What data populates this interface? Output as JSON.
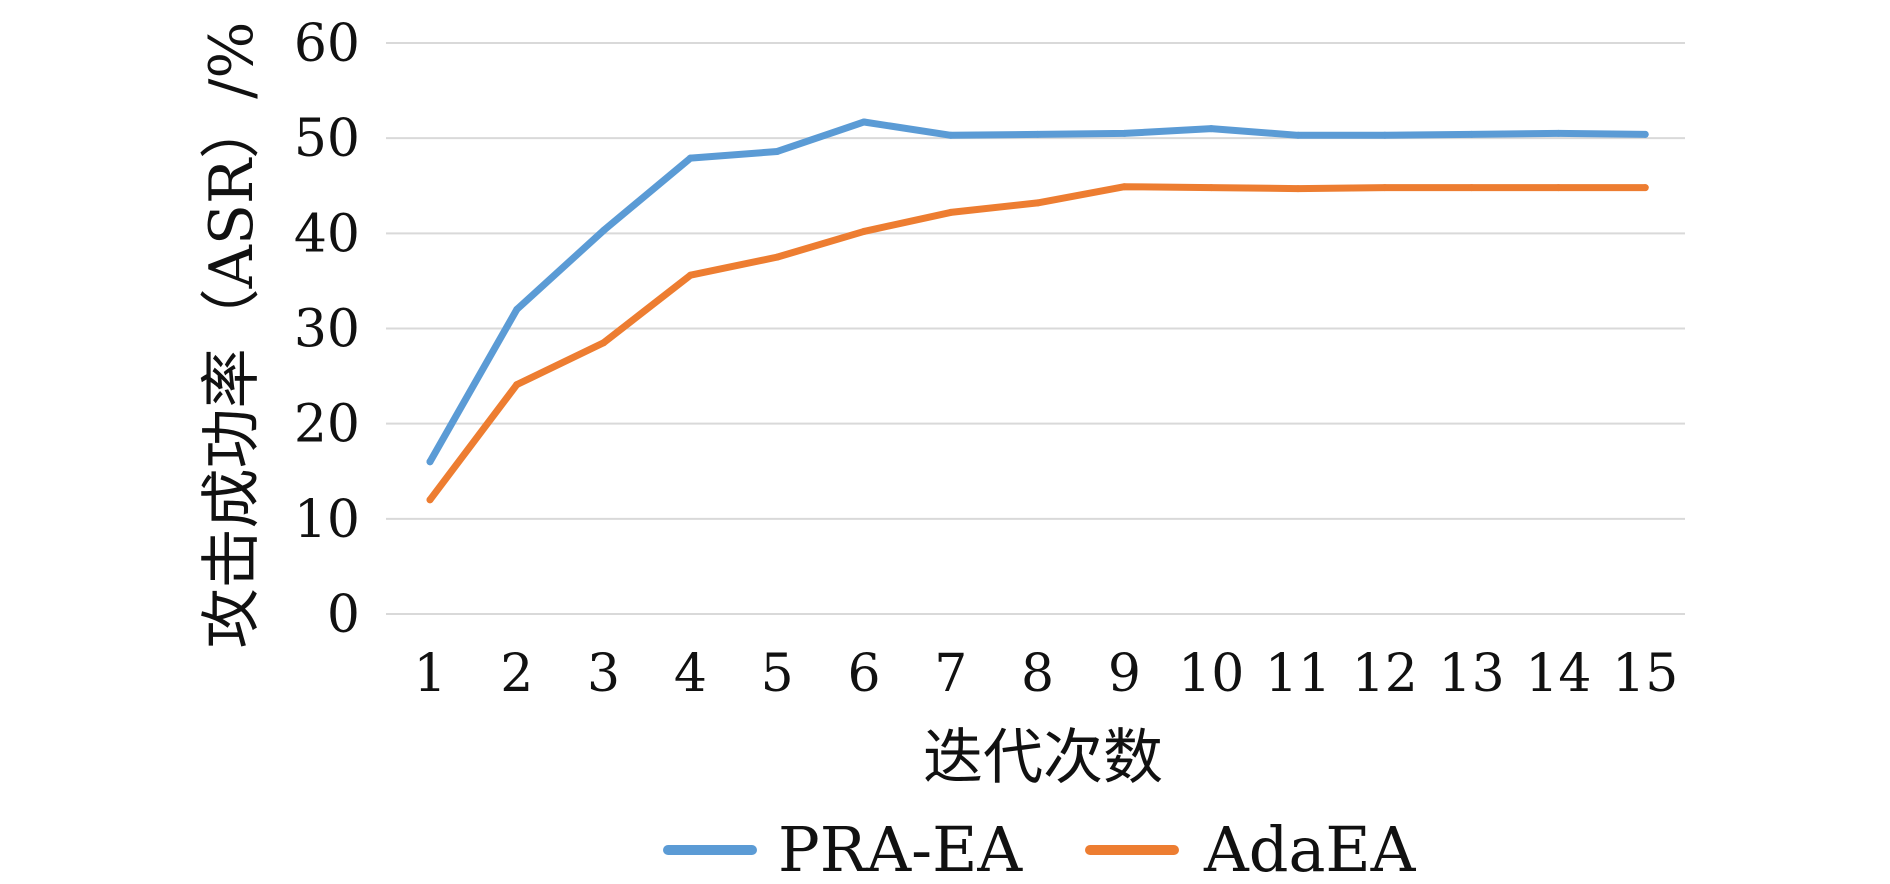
{
  "chart_data": {
    "type": "line",
    "title": "",
    "xlabel": "迭代次数",
    "ylabel": "攻击成功率（ASR）/%",
    "categories": [
      "1",
      "2",
      "3",
      "4",
      "5",
      "6",
      "7",
      "8",
      "9",
      "10",
      "11",
      "12",
      "13",
      "14",
      "15"
    ],
    "ylim": [
      0,
      60
    ],
    "yticks": [
      0,
      10,
      20,
      30,
      40,
      50,
      60
    ],
    "grid": true,
    "legend_position": "bottom",
    "series": [
      {
        "name": "PRA-EA",
        "color": "#5b9bd5",
        "values": [
          16.0,
          32.0,
          40.3,
          47.9,
          48.6,
          51.7,
          50.3,
          50.4,
          50.5,
          51.0,
          50.3,
          50.3,
          50.4,
          50.5,
          50.4
        ]
      },
      {
        "name": "AdaEA",
        "color": "#ed7d31",
        "values": [
          12.0,
          24.1,
          28.5,
          35.6,
          37.5,
          40.2,
          42.2,
          43.2,
          44.9,
          44.8,
          44.7,
          44.8,
          44.8,
          44.8,
          44.8
        ]
      }
    ]
  }
}
